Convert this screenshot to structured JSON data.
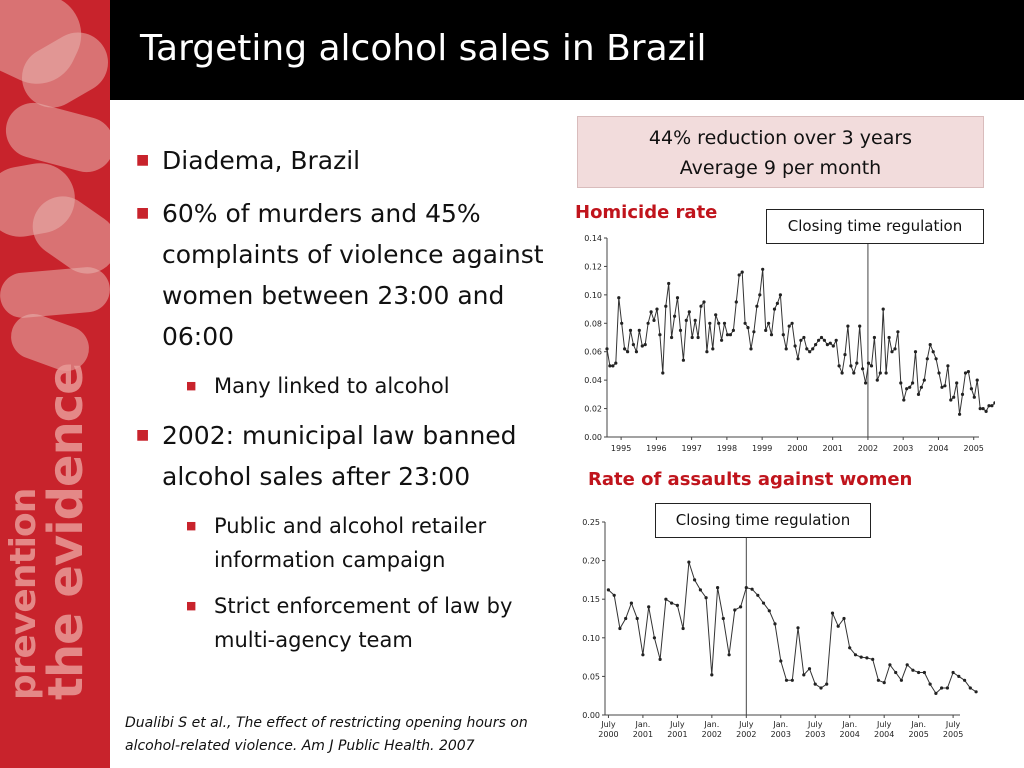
{
  "slide": {
    "title": "Targeting alcohol sales in Brazil",
    "side_text": [
      "violence prevention",
      "the evidence"
    ]
  },
  "bullets": [
    {
      "level": 1,
      "text": "Diadema, Brazil"
    },
    {
      "level": 1,
      "text": "60% of murders and 45% complaints of violence against women between 23:00 and 06:00"
    },
    {
      "level": 2,
      "text": "Many linked to alcohol"
    },
    {
      "level": 1,
      "text": "2002: municipal law banned alcohol sales after 23:00"
    },
    {
      "level": 2,
      "text": "Public and alcohol retailer information campaign"
    },
    {
      "level": 2,
      "text": "Strict enforcement of law by multi-agency team"
    }
  ],
  "citation": "Dualibi S et al., The effect of restricting opening hours on alcohol-related violence. Am J Public Health. 2007",
  "stats_box": {
    "line1": "44% reduction over 3 years",
    "line2": "Average 9 per month"
  },
  "colors": {
    "accent": "#c8232c",
    "title_red": "#c0141c",
    "box_pink": "#f2dcdc"
  },
  "chart_data": [
    {
      "type": "line",
      "title": "Homicide rate",
      "annotation": "Closing time regulation",
      "event_x": 2002.0,
      "xlim": [
        1994.6,
        2005.15
      ],
      "ylim": [
        0,
        0.14
      ],
      "yticks": [
        "0.00",
        "0.02",
        "0.04",
        "0.06",
        "0.08",
        "0.10",
        "0.12",
        "0.14"
      ],
      "ytick_values": [
        0,
        0.02,
        0.04,
        0.06,
        0.08,
        0.1,
        0.12,
        0.14
      ],
      "xticks": [
        "1995",
        "1996",
        "1997",
        "1998",
        "1999",
        "2000",
        "2001",
        "2002",
        "2003",
        "2004",
        "2005"
      ],
      "xtick_values": [
        1995,
        1996,
        1997,
        1998,
        1999,
        2000,
        2001,
        2002,
        2003,
        2004,
        2005
      ],
      "x_start": 1994.6,
      "x_step": 0.083333,
      "values": [
        0.062,
        0.05,
        0.05,
        0.052,
        0.098,
        0.08,
        0.062,
        0.06,
        0.075,
        0.065,
        0.06,
        0.075,
        0.064,
        0.065,
        0.08,
        0.088,
        0.082,
        0.09,
        0.072,
        0.045,
        0.092,
        0.108,
        0.07,
        0.085,
        0.098,
        0.075,
        0.054,
        0.082,
        0.088,
        0.07,
        0.082,
        0.07,
        0.092,
        0.095,
        0.06,
        0.08,
        0.062,
        0.086,
        0.08,
        0.068,
        0.08,
        0.072,
        0.072,
        0.075,
        0.095,
        0.114,
        0.116,
        0.08,
        0.077,
        0.062,
        0.074,
        0.092,
        0.1,
        0.118,
        0.075,
        0.08,
        0.072,
        0.09,
        0.094,
        0.1,
        0.072,
        0.062,
        0.078,
        0.08,
        0.064,
        0.055,
        0.068,
        0.07,
        0.062,
        0.06,
        0.062,
        0.065,
        0.068,
        0.07,
        0.068,
        0.065,
        0.066,
        0.064,
        0.068,
        0.05,
        0.045,
        0.058,
        0.078,
        0.05,
        0.045,
        0.052,
        0.078,
        0.048,
        0.038,
        0.052,
        0.05,
        0.07,
        0.04,
        0.045,
        0.09,
        0.045,
        0.07,
        0.06,
        0.062,
        0.074,
        0.038,
        0.026,
        0.034,
        0.035,
        0.038,
        0.06,
        0.03,
        0.035,
        0.04,
        0.055,
        0.065,
        0.06,
        0.055,
        0.045,
        0.035,
        0.036,
        0.05,
        0.026,
        0.028,
        0.038,
        0.016,
        0.03,
        0.045,
        0.046,
        0.034,
        0.028,
        0.04,
        0.02,
        0.02,
        0.018,
        0.022,
        0.022,
        0.024,
        0.025,
        0.026,
        0.03,
        0.034,
        0.036,
        0.02,
        0.028,
        0.01,
        0.005
      ]
    },
    {
      "type": "line",
      "title": "Rate of assaults against women",
      "annotation": "Closing time regulation",
      "event_x": 2002.5,
      "xlim": [
        2000.45,
        2005.6
      ],
      "ylim": [
        0,
        0.25
      ],
      "yticks": [
        "0.00",
        "0.05",
        "0.10",
        "0.15",
        "0.20",
        "0.25"
      ],
      "ytick_values": [
        0,
        0.05,
        0.1,
        0.15,
        0.2,
        0.25
      ],
      "xticks": [
        [
          "July",
          "2000"
        ],
        [
          "Jan.",
          "2001"
        ],
        [
          "July",
          "2001"
        ],
        [
          "Jan.",
          "2002"
        ],
        [
          "July",
          "2002"
        ],
        [
          "Jan.",
          "2003"
        ],
        [
          "July",
          "2003"
        ],
        [
          "Jan.",
          "2004"
        ],
        [
          "July",
          "2004"
        ],
        [
          "Jan.",
          "2005"
        ],
        [
          "July",
          "2005"
        ]
      ],
      "xtick_values": [
        2000.5,
        2001.0,
        2001.5,
        2002.0,
        2002.5,
        2003.0,
        2003.5,
        2004.0,
        2004.5,
        2005.0,
        2005.5
      ],
      "x_start": 2000.5,
      "x_step": 0.083333,
      "values": [
        0.162,
        0.155,
        0.112,
        0.125,
        0.145,
        0.125,
        0.078,
        0.14,
        0.1,
        0.072,
        0.15,
        0.145,
        0.142,
        0.112,
        0.198,
        0.175,
        0.162,
        0.152,
        0.052,
        0.165,
        0.125,
        0.078,
        0.136,
        0.14,
        0.165,
        0.163,
        0.155,
        0.145,
        0.135,
        0.118,
        0.07,
        0.045,
        0.045,
        0.113,
        0.052,
        0.06,
        0.04,
        0.035,
        0.04,
        0.132,
        0.115,
        0.125,
        0.087,
        0.078,
        0.075,
        0.074,
        0.072,
        0.045,
        0.042,
        0.065,
        0.055,
        0.045,
        0.065,
        0.058,
        0.055,
        0.055,
        0.04,
        0.028,
        0.035,
        0.035,
        0.055,
        0.05,
        0.045,
        0.035,
        0.03
      ]
    }
  ]
}
